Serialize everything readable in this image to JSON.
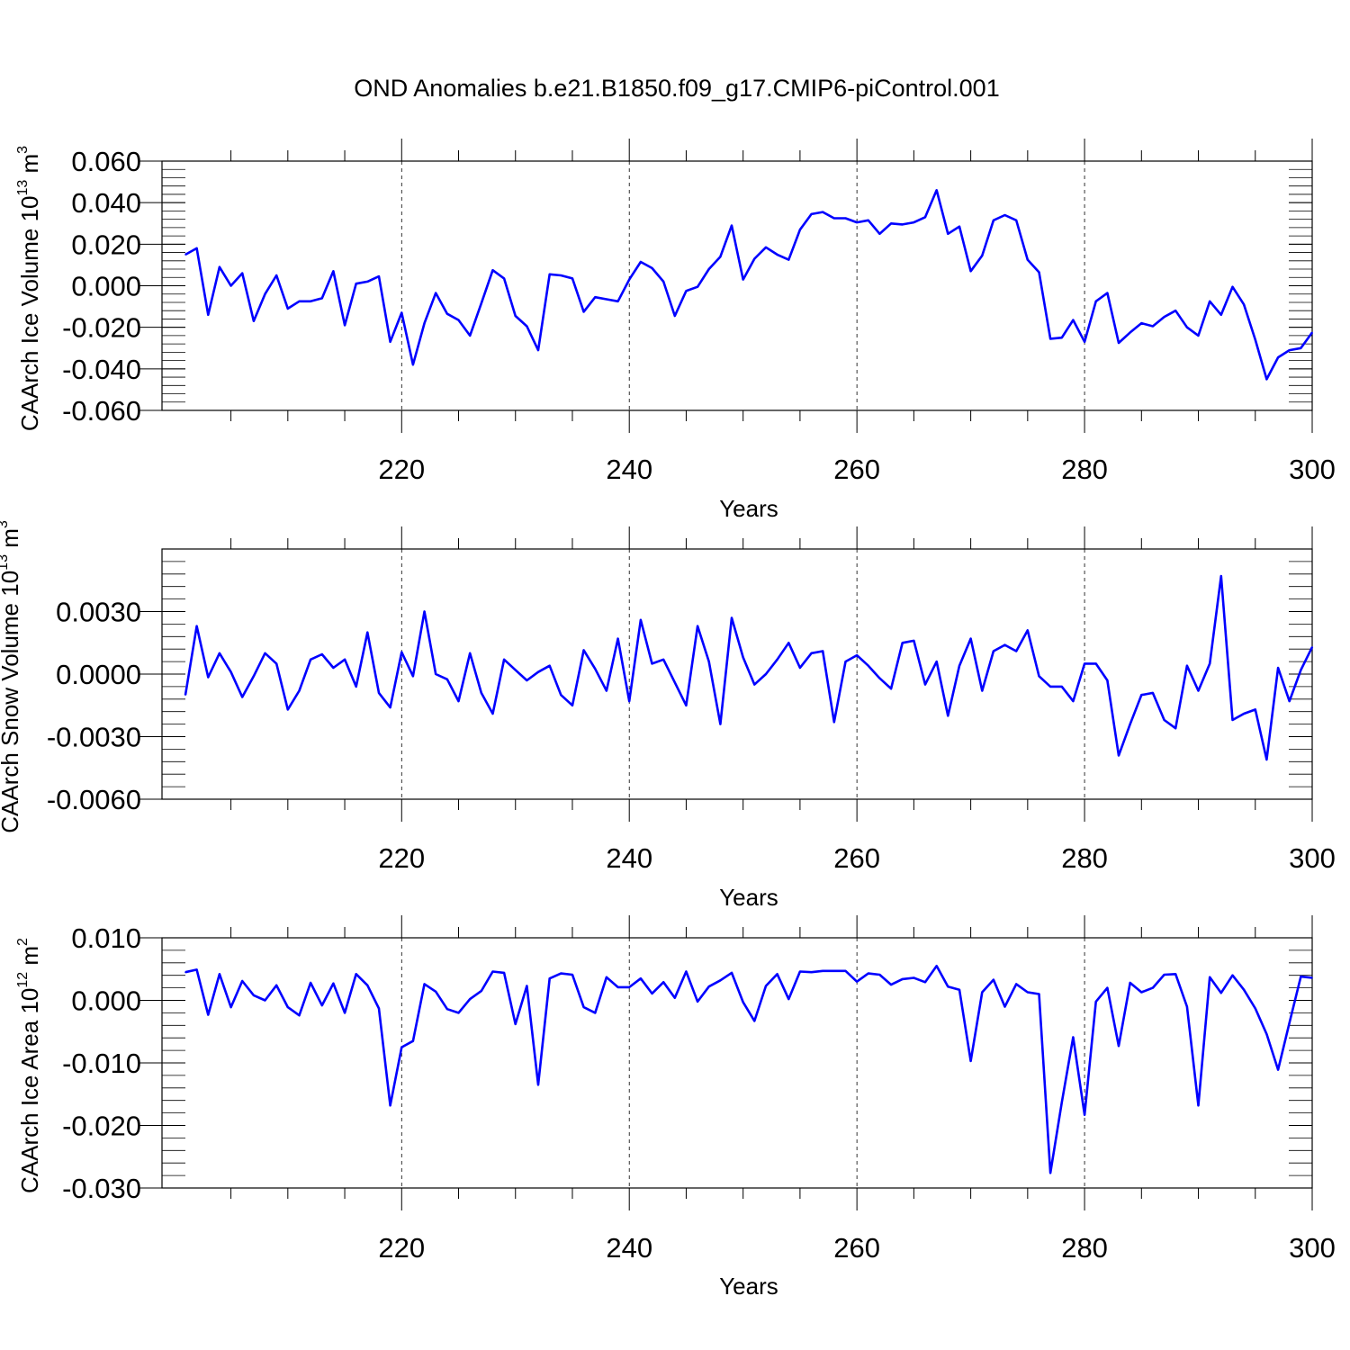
{
  "title": "OND Anomalies b.e21.B1850.f09_g17.CMIP6-piControl.001",
  "colors": {
    "line": "#0000ff",
    "axis": "#000000",
    "grid": "#000000"
  },
  "chart_data": [
    {
      "type": "line",
      "name": "ice-volume",
      "xlabel": "Years",
      "ylabel": {
        "text": "CAArch Ice Volume 10",
        "sup": "13",
        "unit": " m",
        "unit_sup": "3"
      },
      "xlim": [
        201,
        300
      ],
      "ylim": [
        -0.06,
        0.06
      ],
      "xticks": [
        220,
        240,
        260,
        280,
        300
      ],
      "yticks": [
        -0.06,
        -0.04,
        -0.02,
        0.0,
        0.02,
        0.04,
        0.06
      ],
      "ytick_labels": [
        "-0.060",
        "-0.040",
        "-0.020",
        "0.000",
        "0.020",
        "0.040",
        "0.060"
      ],
      "x_start": 201,
      "series": [
        {
          "name": "CAArch Ice Volume",
          "values": [
            0.015,
            0.018,
            -0.014,
            0.009,
            0.0,
            0.006,
            -0.017,
            -0.004,
            0.005,
            -0.011,
            -0.0075,
            -0.0075,
            -0.006,
            0.007,
            -0.019,
            0.001,
            0.002,
            0.0045,
            -0.027,
            -0.013,
            -0.038,
            -0.018,
            -0.0035,
            -0.0135,
            -0.0165,
            -0.024,
            -0.0085,
            0.0075,
            0.0035,
            -0.0145,
            -0.0195,
            -0.031,
            0.0055,
            0.005,
            0.0035,
            -0.0125,
            -0.0055,
            -0.0065,
            -0.0075,
            0.003,
            0.0115,
            0.0085,
            0.002,
            -0.0145,
            -0.0025,
            -0.0005,
            0.008,
            0.014,
            0.029,
            0.003,
            0.013,
            0.0185,
            0.015,
            0.0125,
            0.027,
            0.0345,
            0.0355,
            0.0325,
            0.0325,
            0.0305,
            0.0315,
            0.025,
            0.03,
            0.0295,
            0.0305,
            0.033,
            0.046,
            0.025,
            0.0285,
            0.007,
            0.0145,
            0.0315,
            0.034,
            0.0315,
            0.0125,
            0.0065,
            -0.0255,
            -0.025,
            -0.0165,
            -0.027,
            -0.0075,
            -0.0035,
            -0.0275,
            -0.0225,
            -0.018,
            -0.0195,
            -0.015,
            -0.012,
            -0.02,
            -0.024,
            -0.0075,
            -0.014,
            -0.0005,
            -0.009,
            -0.026,
            -0.045,
            -0.0345,
            -0.031,
            -0.03,
            -0.0225
          ]
        }
      ]
    },
    {
      "type": "line",
      "name": "snow-volume",
      "xlabel": "Years",
      "ylabel": {
        "text": "CAArch Snow Volume 10",
        "sup": "13",
        "unit": " m",
        "unit_sup": "3"
      },
      "xlim": [
        201,
        300
      ],
      "ylim": [
        -0.006,
        0.006
      ],
      "xticks": [
        220,
        240,
        260,
        280,
        300
      ],
      "yticks": [
        -0.006,
        -0.003,
        0.0,
        0.003
      ],
      "ytick_labels": [
        "-0.0060",
        "-0.0030",
        "0.0000",
        "0.0030"
      ],
      "x_start": 201,
      "series": [
        {
          "name": "CAArch Snow Volume",
          "values": [
            -0.001,
            0.0023,
            -0.00015,
            0.001,
            0.0001,
            -0.0011,
            -0.0001,
            0.001,
            0.0005,
            -0.0017,
            -0.0008,
            0.0007,
            0.00095,
            0.0003,
            0.0007,
            -0.0006,
            0.002,
            -0.0009,
            -0.0016,
            0.00105,
            -0.0001,
            0.003,
            0.0,
            -0.00025,
            -0.0013,
            0.001,
            -0.0009,
            -0.0019,
            0.0007,
            0.0002,
            -0.0003,
            0.0001,
            0.0004,
            -0.001,
            -0.0015,
            0.00115,
            0.00025,
            -0.0008,
            0.0017,
            -0.0013,
            0.0026,
            0.0005,
            0.0007,
            -0.0004,
            -0.0015,
            0.0023,
            0.0006,
            -0.0024,
            0.0027,
            0.0008,
            -0.0005,
            0.0,
            0.0007,
            0.0015,
            0.0003,
            0.001,
            0.0011,
            -0.0023,
            0.0006,
            0.0009,
            0.0004,
            -0.0002,
            -0.0007,
            0.0015,
            0.0016,
            -0.0005,
            0.0006,
            -0.002,
            0.0004,
            0.0017,
            -0.0008,
            0.0011,
            0.0014,
            0.0011,
            0.0021,
            -0.0001,
            -0.0006,
            -0.0006,
            -0.0013,
            0.0005,
            0.0005,
            -0.0003,
            -0.0039,
            -0.0024,
            -0.001,
            -0.0009,
            -0.0022,
            -0.0026,
            0.0004,
            -0.0008,
            0.0005,
            0.0047,
            -0.0022,
            -0.0019,
            -0.0017,
            -0.0041,
            0.0003,
            -0.0013,
            0.0002,
            0.0013
          ]
        }
      ]
    },
    {
      "type": "line",
      "name": "ice-area",
      "xlabel": "Years",
      "ylabel": {
        "text": "CAArch Ice Area 10",
        "sup": "12",
        "unit": " m",
        "unit_sup": "2"
      },
      "xlim": [
        201,
        300
      ],
      "ylim": [
        -0.03,
        0.01
      ],
      "xticks": [
        220,
        240,
        260,
        280,
        300
      ],
      "yticks": [
        -0.03,
        -0.02,
        -0.01,
        0.0,
        0.01
      ],
      "ytick_labels": [
        "-0.030",
        "-0.020",
        "-0.010",
        "0.000",
        "0.010"
      ],
      "x_start": 201,
      "series": [
        {
          "name": "CAArch Ice Area",
          "values": [
            0.0045,
            0.0049,
            -0.0023,
            0.0042,
            -0.0011,
            0.0031,
            0.0008,
            0.0,
            0.0024,
            -0.0011,
            -0.0024,
            0.0028,
            -0.0008,
            0.0027,
            -0.002,
            0.0042,
            0.0024,
            -0.0013,
            -0.0168,
            -0.0075,
            -0.0065,
            0.0026,
            0.0014,
            -0.0014,
            -0.002,
            0.0002,
            0.0015,
            0.0046,
            0.0044,
            -0.0038,
            0.0023,
            -0.0135,
            0.0035,
            0.0043,
            0.0041,
            -0.0011,
            -0.002,
            0.0037,
            0.0021,
            0.0021,
            0.0035,
            0.0011,
            0.0029,
            0.0004,
            0.0046,
            -0.0002,
            0.0022,
            0.0032,
            0.0044,
            -0.0003,
            -0.0033,
            0.0023,
            0.0042,
            0.0002,
            0.0046,
            0.0045,
            0.0047,
            0.0047,
            0.0047,
            0.003,
            0.0043,
            0.0041,
            0.0025,
            0.0034,
            0.0036,
            0.0029,
            0.0055,
            0.0022,
            0.0017,
            -0.0097,
            0.0013,
            0.0033,
            -0.001,
            0.0026,
            0.0013,
            0.001,
            -0.0276,
            -0.0163,
            -0.0059,
            -0.0183,
            -0.0002,
            0.002,
            -0.0073,
            0.0028,
            0.0013,
            0.002,
            0.0041,
            0.0042,
            -0.001,
            -0.0168,
            0.0037,
            0.0012,
            0.004,
            0.0017,
            -0.0013,
            -0.0054,
            -0.0111,
            -0.0036,
            0.0038,
            0.0036
          ]
        }
      ]
    }
  ]
}
